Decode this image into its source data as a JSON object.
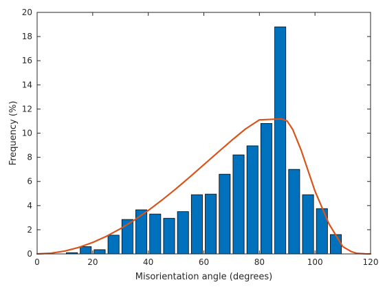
{
  "chart_data": {
    "type": "bar",
    "xlabel": "Misorientation angle (degrees)",
    "ylabel": "Frequency (%)",
    "xlim": [
      0,
      120
    ],
    "ylim": [
      0,
      20
    ],
    "xticks": [
      0,
      20,
      40,
      60,
      80,
      100,
      120
    ],
    "yticks": [
      0,
      2,
      4,
      6,
      8,
      10,
      12,
      14,
      16,
      18,
      20
    ],
    "grid": false,
    "bar_color": "#0072BD",
    "bar_edge_color": "#000000",
    "bar_width": 4,
    "bars": {
      "x": [
        2.5,
        7.5,
        12.5,
        17.5,
        22.5,
        27.5,
        32.5,
        37.5,
        42.5,
        47.5,
        52.5,
        57.5,
        62.5,
        67.5,
        72.5,
        77.5,
        82.5,
        87.5,
        92.5,
        97.5,
        102.5,
        107.5,
        112.5,
        117.5
      ],
      "values": [
        0,
        0,
        0.1,
        0.6,
        0.35,
        1.55,
        2.85,
        3.65,
        3.3,
        2.95,
        3.5,
        4.9,
        4.95,
        6.6,
        8.2,
        8.95,
        10.8,
        18.8,
        7.0,
        4.9,
        3.75,
        1.6,
        0,
        0
      ]
    },
    "curve": {
      "color": "#D95319",
      "x": [
        0,
        5,
        10,
        15,
        20,
        25,
        30,
        35,
        40,
        45,
        50,
        55,
        60,
        65,
        70,
        75,
        80,
        85,
        88,
        90,
        92,
        95,
        100,
        105,
        110,
        113,
        115,
        118,
        120
      ],
      "y": [
        0,
        0.06,
        0.24,
        0.54,
        0.95,
        1.47,
        2.09,
        2.8,
        3.6,
        4.47,
        5.4,
        6.38,
        7.39,
        8.4,
        9.4,
        10.35,
        11.1,
        11.15,
        11.18,
        11.0,
        10.3,
        8.6,
        5.2,
        2.5,
        0.6,
        0.2,
        0.05,
        0.01,
        0
      ]
    }
  }
}
